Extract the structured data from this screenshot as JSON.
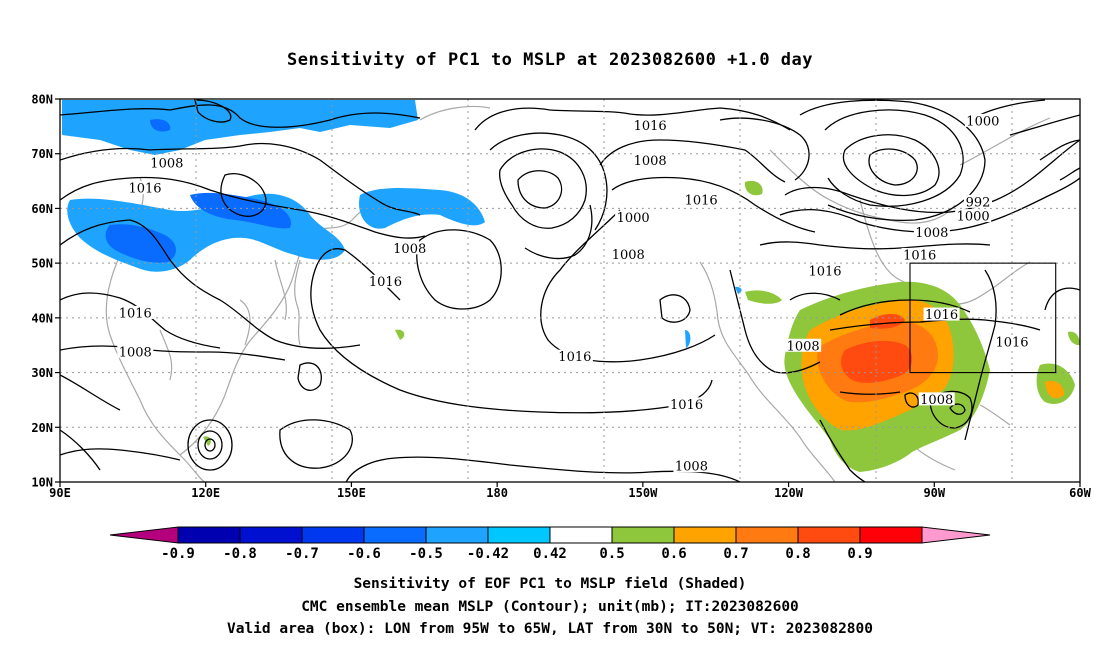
{
  "title": "Sensitivity of PC1 to MSLP at 2023082600 +1.0 day",
  "map": {
    "lat_labels": [
      "80N",
      "70N",
      "60N",
      "50N",
      "40N",
      "30N",
      "20N",
      "10N"
    ],
    "lon_labels": [
      "90E",
      "120E",
      "150E",
      "180",
      "150W",
      "120W",
      "90W",
      "60W"
    ],
    "contour_unit": "mb",
    "contour_labels": [
      {
        "text": "1016",
        "lon": -148.5,
        "lat": 75.2
      },
      {
        "text": "1000",
        "lon": -80,
        "lat": 76
      },
      {
        "text": "1008",
        "lon": 112,
        "lat": 68.3
      },
      {
        "text": "1008",
        "lon": -148.5,
        "lat": 68.8
      },
      {
        "text": "1016",
        "lon": 107.5,
        "lat": 63.7
      },
      {
        "text": "992",
        "lon": -81,
        "lat": 61.2
      },
      {
        "text": "1016",
        "lon": -138,
        "lat": 61.5
      },
      {
        "text": "1000",
        "lon": -82,
        "lat": 58.6
      },
      {
        "text": "1000",
        "lon": -152,
        "lat": 58.3
      },
      {
        "text": "1008",
        "lon": -90.5,
        "lat": 55.6
      },
      {
        "text": "1008",
        "lon": 162,
        "lat": 52.7
      },
      {
        "text": "1016",
        "lon": -93,
        "lat": 51.5
      },
      {
        "text": "1008",
        "lon": -153,
        "lat": 51.6
      },
      {
        "text": "1016",
        "lon": -112.5,
        "lat": 48.6
      },
      {
        "text": "1016",
        "lon": 157,
        "lat": 46.6
      },
      {
        "text": "1016",
        "lon": -88.5,
        "lat": 40.6
      },
      {
        "text": "1016",
        "lon": 105.5,
        "lat": 40.9
      },
      {
        "text": "1016",
        "lon": -74,
        "lat": 35.6
      },
      {
        "text": "1008",
        "lon": -117,
        "lat": 34.9
      },
      {
        "text": "1008",
        "lon": 105.5,
        "lat": 33.8
      },
      {
        "text": "1016",
        "lon": -164,
        "lat": 32.9
      },
      {
        "text": "1008",
        "lon": -89.5,
        "lat": 25.1
      },
      {
        "text": "1016",
        "lon": -141,
        "lat": 24.2
      },
      {
        "text": "1008",
        "lon": -140,
        "lat": 12.9
      }
    ],
    "valid_box": {
      "lon_min": -95,
      "lon_max": -65,
      "lat_min": 30,
      "lat_max": 50
    }
  },
  "colorbar": {
    "labels": [
      "-0.9",
      "-0.8",
      "-0.7",
      "-0.6",
      "-0.5",
      "-0.42",
      "0.42",
      "0.5",
      "0.6",
      "0.7",
      "0.8",
      "0.9"
    ],
    "colors": [
      "#b4007c",
      "#0000b0",
      "#0010d0",
      "#0038f0",
      "#0a6cff",
      "#1ea4ff",
      "#00c8ff",
      "#ffffff",
      "#8ec63c",
      "#ffa300",
      "#ff7a10",
      "#ff4a10",
      "#ff0008",
      "#ff9ad0"
    ]
  },
  "captions": [
    "Sensitivity of EOF PC1 to MSLP field (Shaded)",
    "CMC ensemble mean MSLP (Contour); unit(mb); IT:2023082600",
    "Valid area (box): LON from 95W to 65W, LAT from 30N to 50N; VT: 2023082800"
  ]
}
